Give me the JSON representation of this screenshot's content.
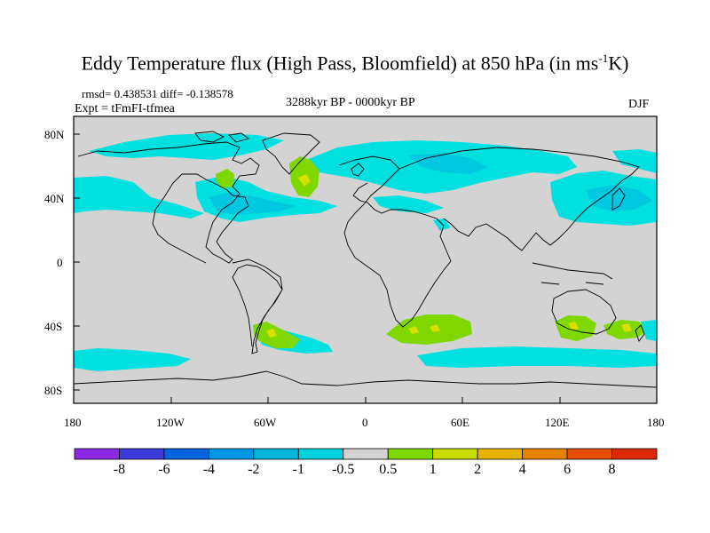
{
  "title": {
    "main": "Eddy Temperature flux (High Pass, Bloomfield) at 850 hPa (in ms",
    "sup": "-1",
    "tail": "K)"
  },
  "stats": {
    "rmsd": "rmsd= 0.438531 diff= -0.138578",
    "expt": "Expt = tFmFI-tfmea",
    "period": "3288kyr BP - 0000kyr BP",
    "season": "DJF"
  },
  "map": {
    "lat_labels": [
      "80N",
      "40N",
      "0",
      "40S",
      "80S"
    ],
    "lon_labels": [
      "180",
      "120W",
      "60W",
      "0",
      "60E",
      "120E",
      "180"
    ],
    "land_color": "#d3d3d3",
    "colors": {
      "light_cyan": "#00e0e0",
      "cyan": "#00c8e0",
      "blue": "#0096e6",
      "green": "#7fd800",
      "yellow": "#d8e000"
    }
  },
  "colorbar": {
    "labels": [
      "-8",
      "-6",
      "-4",
      "-2",
      "-1",
      "-0.5",
      "0.5",
      "1",
      "2",
      "4",
      "6",
      "8"
    ],
    "colors": [
      "#8c28e6",
      "#3c3cdc",
      "#0064dc",
      "#0096e6",
      "#00b4dc",
      "#00d2dc",
      "#d3d3d3",
      "#7fd800",
      "#c8dc00",
      "#e6b400",
      "#e68200",
      "#e65000",
      "#dc2800"
    ]
  }
}
